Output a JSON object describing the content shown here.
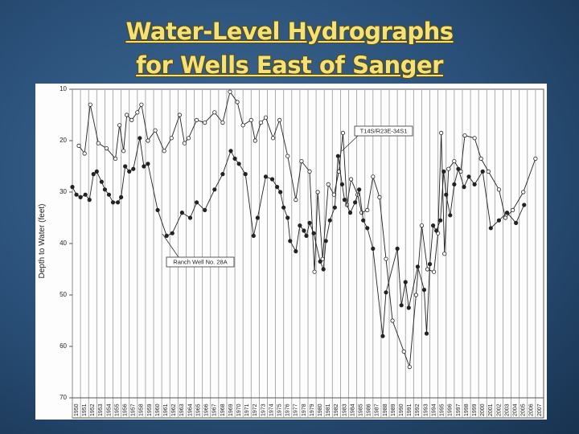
{
  "chart_data": {
    "type": "line",
    "title": [
      "Water-Level Hydrographs",
      "for Wells East of Sanger"
    ],
    "y_label": "Depth to Water (feet)",
    "xlim": [
      1950,
      2008
    ],
    "ylim": [
      10,
      70
    ],
    "invert_y": true,
    "grid": true,
    "yticks": [
      10,
      20,
      30,
      40,
      50,
      60,
      70
    ],
    "xticks": [
      1950,
      1951,
      1952,
      1953,
      1954,
      1955,
      1956,
      1957,
      1958,
      1959,
      1960,
      1961,
      1962,
      1963,
      1964,
      1965,
      1966,
      1967,
      1968,
      1969,
      1970,
      1971,
      1972,
      1973,
      1974,
      1975,
      1976,
      1977,
      1978,
      1979,
      1980,
      1981,
      1982,
      1983,
      1984,
      1985,
      1986,
      1987,
      1988,
      1989,
      1990,
      1991,
      1992,
      1993,
      1994,
      1995,
      1996,
      1997,
      1998,
      1999,
      2000,
      2001,
      2002,
      2003,
      2004,
      2005,
      2006,
      2007
    ],
    "series": [
      {
        "name": "T14S/R23E-34S1",
        "color": "#222222",
        "marker": "open",
        "x": [
          1950.8,
          1951.5,
          1952.2,
          1953.2,
          1954.2,
          1955.3,
          1955.8,
          1956.3,
          1956.7,
          1957.3,
          1958.0,
          1958.5,
          1959.3,
          1960.2,
          1961.3,
          1962.2,
          1963.2,
          1963.8,
          1964.3,
          1965.3,
          1966.3,
          1967.5,
          1968.5,
          1969.4,
          1970.3,
          1971.0,
          1972.0,
          1972.5,
          1973.2,
          1973.8,
          1974.7,
          1975.5,
          1976.5,
          1977.5,
          1978.2,
          1979.2,
          1979.8,
          1980.2,
          1980.8,
          1981.5,
          1982.2,
          1982.8,
          1983.3,
          1983.8,
          1984.3,
          1985.1,
          1985.6,
          1986.3,
          1987.0,
          1987.8,
          1988.6,
          1989.4,
          1990.8,
          1991.5,
          1992.3,
          1993.0,
          1993.7,
          1994.5,
          1995.0,
          1995.4,
          1995.8,
          1996.3,
          1997.0,
          1997.8,
          1998.3,
          1999.5,
          2000.3,
          2001.2,
          2002.5,
          2003.3,
          2004.2,
          2005.5,
          2007.0
        ],
        "values": [
          21,
          22.5,
          13,
          20.5,
          21.5,
          23.5,
          17,
          22,
          15,
          16,
          14.5,
          13,
          20,
          18,
          22,
          19.5,
          15,
          20.5,
          19.5,
          16,
          16.5,
          14.5,
          16.5,
          10.5,
          12.5,
          17,
          16,
          20,
          16.5,
          15.5,
          19.5,
          16,
          23,
          31.5,
          24,
          26,
          45.5,
          30,
          43,
          28.5,
          30.5,
          26,
          18.5,
          32.5,
          27.5,
          30.5,
          34,
          33.5,
          27,
          31,
          43,
          55,
          61,
          64,
          50,
          36.5,
          45,
          45.5,
          38,
          18.5,
          42,
          25.5,
          24,
          26,
          19,
          19.5,
          23.5,
          26,
          29.5,
          35,
          33.5,
          30,
          23.5
        ]
      },
      {
        "name": "Ranch Well No. 28A",
        "color": "#222222",
        "marker": "filled",
        "x": [
          1950.0,
          1950.5,
          1951.0,
          1951.6,
          1952.1,
          1952.6,
          1953.0,
          1953.6,
          1954.0,
          1954.5,
          1955.0,
          1955.6,
          1956.0,
          1956.5,
          1957.0,
          1957.5,
          1958.3,
          1958.8,
          1959.3,
          1960.5,
          1961.6,
          1962.3,
          1963.5,
          1964.5,
          1965.3,
          1966.3,
          1967.5,
          1968.5,
          1969.5,
          1970.0,
          1970.5,
          1971.3,
          1972.3,
          1972.8,
          1973.8,
          1974.6,
          1975.2,
          1975.6,
          1976.0,
          1976.5,
          1976.8,
          1977.5,
          1978.0,
          1978.5,
          1978.8,
          1979.2,
          1979.7,
          1980.5,
          1980.9,
          1981.2,
          1981.7,
          1982.3,
          1982.7,
          1983.2,
          1983.5,
          1984.2,
          1984.8,
          1985.3,
          1985.8,
          1986.3,
          1987.0,
          1988.2,
          1988.6,
          1990.0,
          1990.5,
          1991.0,
          1991.4,
          1992.5,
          1993.3,
          1993.6,
          1994.0,
          1994.4,
          1994.8,
          1995.3,
          1995.7,
          1996.0,
          1996.5,
          1997.0,
          1997.5,
          1998.2,
          1998.8,
          1999.5,
          2000.5,
          2001.5,
          2002.5,
          2003.5,
          2004.6,
          2005.6
        ],
        "values": [
          29,
          30.5,
          31,
          30.5,
          31.5,
          26.5,
          26,
          28,
          29.5,
          30.5,
          32,
          32,
          31,
          25,
          26,
          25.5,
          19.5,
          25,
          24.5,
          33.5,
          38.5,
          38,
          34,
          35,
          32,
          33.5,
          29.5,
          26.5,
          22,
          23.5,
          24.5,
          26.5,
          38.5,
          35,
          27,
          27.5,
          29,
          30,
          33,
          35,
          39.5,
          41.5,
          36.5,
          37.5,
          38.5,
          36,
          38,
          43.5,
          45,
          39.5,
          35.5,
          33,
          23,
          28.5,
          31.5,
          34,
          32,
          29.5,
          35.5,
          37,
          41,
          58,
          49.5,
          41,
          52,
          47.5,
          52.5,
          44.5,
          49,
          57.5,
          44,
          36.5,
          37.5,
          35.5,
          26,
          30.5,
          34.5,
          28.5,
          25.5,
          29,
          27,
          28.5,
          26,
          37,
          35.5,
          34,
          36,
          32.5
        ]
      }
    ]
  }
}
